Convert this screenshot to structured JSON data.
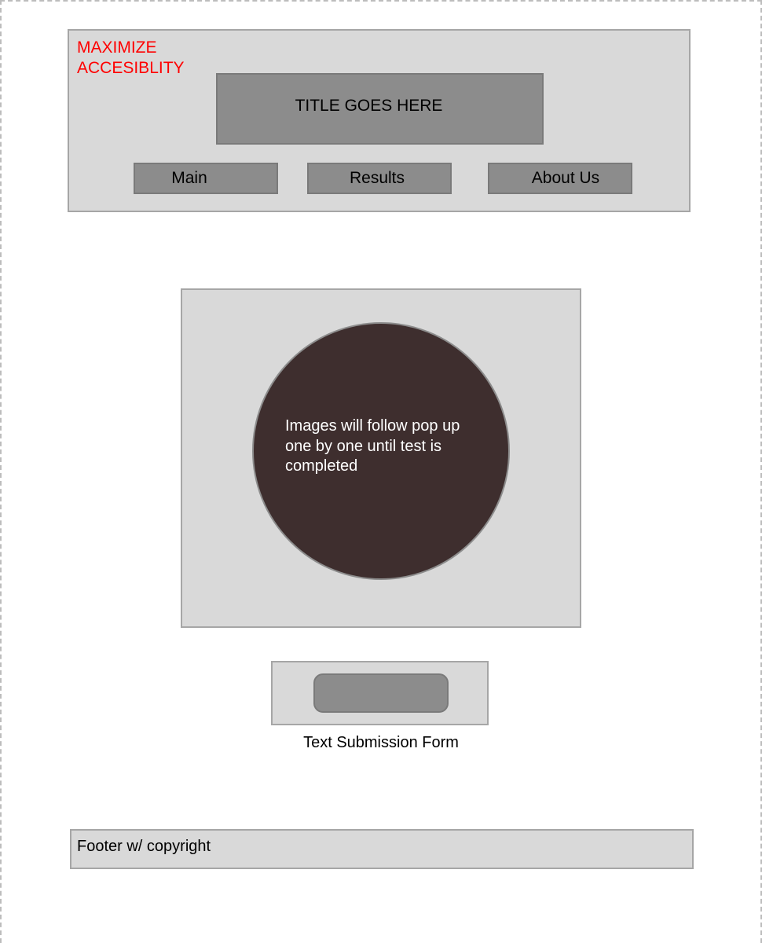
{
  "header": {
    "brand": "MAXIMIZE ACCESIBLITY",
    "title": "TITLE GOES HERE",
    "nav": [
      {
        "label": "Main"
      },
      {
        "label": "Results"
      },
      {
        "label": "About Us"
      }
    ]
  },
  "image_panel": {
    "text": "Images will follow pop up one by one until test is completed"
  },
  "form": {
    "caption": "Text Submission Form"
  },
  "footer": {
    "text": "Footer w/ copyright"
  },
  "colors": {
    "brand": "#ff0000",
    "panel": "#d9d9d9",
    "button": "#8c8c8c",
    "circle": "#3e2e2e"
  }
}
